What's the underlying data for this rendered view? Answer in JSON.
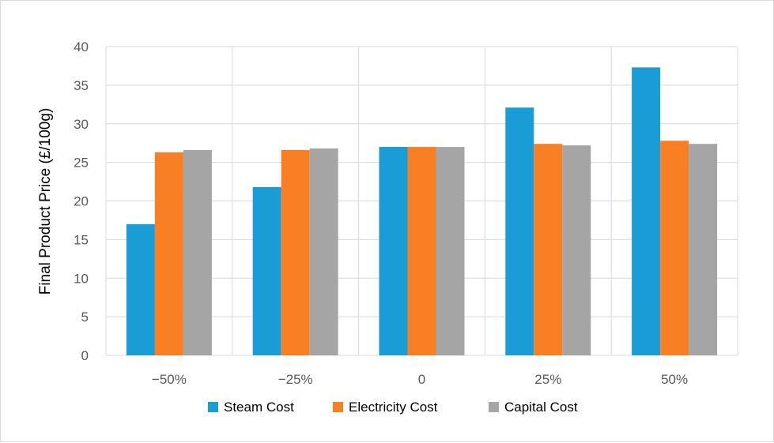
{
  "chart_data": {
    "type": "bar",
    "categories": [
      "−50%",
      "−25%",
      "0",
      "25%",
      "50%"
    ],
    "series": [
      {
        "name": "Steam Cost",
        "color": "#1a9cd7",
        "values": [
          17.0,
          21.8,
          27.0,
          32.1,
          37.3
        ]
      },
      {
        "name": "Electricity Cost",
        "color": "#f97f24",
        "values": [
          26.3,
          26.6,
          27.0,
          27.4,
          27.8
        ]
      },
      {
        "name": "Capital Cost",
        "color": "#a5a5a5",
        "values": [
          26.6,
          26.8,
          27.0,
          27.2,
          27.4
        ]
      }
    ],
    "title": "",
    "xlabel": "",
    "ylabel": "Final Product Price (£/100g)",
    "ylim": [
      0,
      40
    ],
    "yticks": [
      0,
      5,
      10,
      15,
      20,
      25,
      30,
      35,
      40
    ],
    "grid": true,
    "legend_position": "bottom"
  }
}
